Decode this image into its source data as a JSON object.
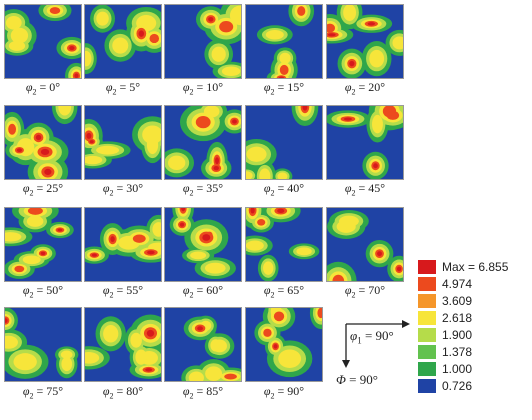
{
  "sections": [
    {
      "label": "φ2 = 0°",
      "var": "φ",
      "sub": "2",
      "val": "0°"
    },
    {
      "label": "φ2 = 5°",
      "var": "φ",
      "sub": "2",
      "val": "5°"
    },
    {
      "label": "φ2 = 10°",
      "var": "φ",
      "sub": "2",
      "val": "10°"
    },
    {
      "label": "φ2 = 15°",
      "var": "φ",
      "sub": "2",
      "val": "15°"
    },
    {
      "label": "φ2 = 20°",
      "var": "φ",
      "sub": "2",
      "val": "20°"
    },
    {
      "label": "φ2 = 25°",
      "var": "φ",
      "sub": "2",
      "val": "25°"
    },
    {
      "label": "φ2 = 30°",
      "var": "φ",
      "sub": "2",
      "val": "30°"
    },
    {
      "label": "φ2 = 35°",
      "var": "φ",
      "sub": "2",
      "val": "35°"
    },
    {
      "label": "φ2 = 40°",
      "var": "φ",
      "sub": "2",
      "val": "40°"
    },
    {
      "label": "φ2 = 45°",
      "var": "φ",
      "sub": "2",
      "val": "45°"
    },
    {
      "label": "φ2 = 50°",
      "var": "φ",
      "sub": "2",
      "val": "50°"
    },
    {
      "label": "φ2 = 55°",
      "var": "φ",
      "sub": "2",
      "val": "55°"
    },
    {
      "label": "φ2 = 60°",
      "var": "φ",
      "sub": "2",
      "val": "60°"
    },
    {
      "label": "φ2 = 65°",
      "var": "φ",
      "sub": "2",
      "val": "65°"
    },
    {
      "label": "φ2 = 70°",
      "var": "φ",
      "sub": "2",
      "val": "70°"
    },
    {
      "label": "φ2 = 75°",
      "var": "φ",
      "sub": "2",
      "val": "75°"
    },
    {
      "label": "φ2 = 80°",
      "var": "φ",
      "sub": "2",
      "val": "80°"
    },
    {
      "label": "φ2 = 85°",
      "var": "φ",
      "sub": "2",
      "val": "85°"
    },
    {
      "label": "φ2 = 90°",
      "var": "φ",
      "sub": "2",
      "val": "90°"
    }
  ],
  "legend": [
    {
      "text": "Max = 6.855",
      "color": "#d7191c"
    },
    {
      "text": "4.974",
      "color": "#ec4a1e"
    },
    {
      "text": "3.609",
      "color": "#f5962a"
    },
    {
      "text": "2.618",
      "color": "#f7e53a"
    },
    {
      "text": "1.900",
      "color": "#b5dc4a"
    },
    {
      "text": "1.378",
      "color": "#62c24e"
    },
    {
      "text": "1.000",
      "color": "#2fa64b"
    },
    {
      "text": "0.726",
      "color": "#1f43a5"
    }
  ],
  "axes": {
    "horizontal": {
      "var": "φ",
      "sub": "1",
      "val": "= 90°"
    },
    "vertical": {
      "var": "Φ",
      "val": "= 90°"
    }
  },
  "colors": {
    "background": "#1f43a5",
    "low": "#2fa64b",
    "mid": "#b5dc4a",
    "high": "#f7e53a",
    "peak": "#ec4a1e",
    "max": "#d7191c"
  }
}
